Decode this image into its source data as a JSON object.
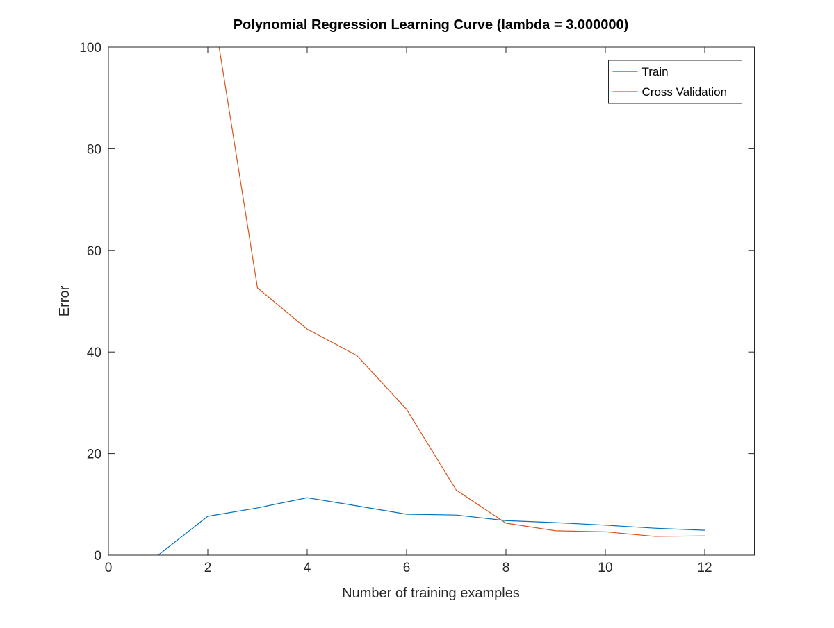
{
  "chart_data": {
    "type": "line",
    "title": "Polynomial Regression Learning Curve (lambda = 3.000000)",
    "x_label": "Number of training examples",
    "y_label": "Error",
    "x": [
      1,
      2,
      3,
      4,
      5,
      6,
      7,
      8,
      9,
      10,
      11,
      12
    ],
    "series": [
      {
        "name": "Train",
        "color": "#0072bd",
        "values": [
          0,
          7.65,
          9.3,
          11.3,
          9.7,
          8.06,
          7.9,
          6.8,
          6.4,
          5.9,
          5.3,
          4.9
        ]
      },
      {
        "name": "Cross Validation",
        "color": "#d95319",
        "values": [
          null,
          114,
          52.6,
          44.5,
          39.3,
          28.7,
          12.8,
          6.3,
          4.8,
          4.6,
          3.7,
          3.8
        ]
      }
    ],
    "xlim": [
      0,
      13
    ],
    "xticks": [
      0,
      2,
      4,
      6,
      8,
      10,
      12
    ],
    "ylim": [
      0,
      100
    ],
    "yticks": [
      0,
      20,
      40,
      60,
      80,
      100
    ],
    "grid": false,
    "legend": "northeast"
  }
}
